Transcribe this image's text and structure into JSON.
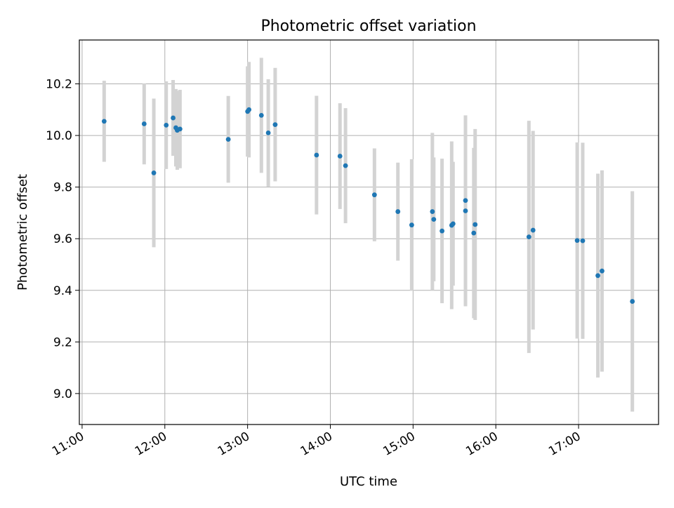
{
  "chart_data": {
    "type": "scatter",
    "title": "Photometric offset variation",
    "xlabel": "UTC time",
    "ylabel": "Photometric offset",
    "x_tick_labels": [
      "11:00",
      "12:00",
      "13:00",
      "14:00",
      "15:00",
      "16:00",
      "17:00"
    ],
    "x_ticks": [
      "11:00",
      "12:00",
      "13:00",
      "14:00",
      "15:00",
      "16:00",
      "17:00"
    ],
    "y_ticks": [
      9.0,
      9.2,
      9.4,
      9.6,
      9.8,
      10.0,
      10.2
    ],
    "y_tick_labels": [
      "9.0",
      "9.2",
      "9.4",
      "9.6",
      "9.8",
      "10.0",
      "10.2"
    ],
    "xlim": [
      "10:58",
      "17:58"
    ],
    "ylim": [
      8.88,
      10.37
    ],
    "grid": true,
    "marker_color": "#1f77b4",
    "errorbar_color": "#d3d3d3",
    "points": [
      {
        "x": "11:16",
        "y": 10.055,
        "yerr": 0.157
      },
      {
        "x": "11:45",
        "y": 10.045,
        "yerr": 0.157
      },
      {
        "x": "11:52",
        "y": 9.855,
        "yerr": 0.288
      },
      {
        "x": "12:01",
        "y": 10.04,
        "yerr": 0.17
      },
      {
        "x": "12:06",
        "y": 10.068,
        "yerr": 0.147
      },
      {
        "x": "12:08",
        "y": 10.03,
        "yerr": 0.15
      },
      {
        "x": "12:09",
        "y": 10.02,
        "yerr": 0.153
      },
      {
        "x": "12:11",
        "y": 10.025,
        "yerr": 0.152
      },
      {
        "x": "12:46",
        "y": 9.985,
        "yerr": 0.168
      },
      {
        "x": "13:00",
        "y": 10.093,
        "yerr": 0.175
      },
      {
        "x": "13:01",
        "y": 10.1,
        "yerr": 0.185
      },
      {
        "x": "13:10",
        "y": 10.078,
        "yerr": 0.223
      },
      {
        "x": "13:15",
        "y": 10.01,
        "yerr": 0.208
      },
      {
        "x": "13:20",
        "y": 10.042,
        "yerr": 0.22
      },
      {
        "x": "13:50",
        "y": 9.924,
        "yerr": 0.23
      },
      {
        "x": "14:07",
        "y": 9.92,
        "yerr": 0.205
      },
      {
        "x": "14:11",
        "y": 9.883,
        "yerr": 0.223
      },
      {
        "x": "14:32",
        "y": 9.77,
        "yerr": 0.18
      },
      {
        "x": "14:49",
        "y": 9.705,
        "yerr": 0.19
      },
      {
        "x": "14:59",
        "y": 9.653,
        "yerr": 0.255
      },
      {
        "x": "15:14",
        "y": 9.705,
        "yerr": 0.305
      },
      {
        "x": "15:15",
        "y": 9.675,
        "yerr": 0.24
      },
      {
        "x": "15:21",
        "y": 9.63,
        "yerr": 0.28
      },
      {
        "x": "15:28",
        "y": 9.652,
        "yerr": 0.325
      },
      {
        "x": "15:29",
        "y": 9.658,
        "yerr": 0.24
      },
      {
        "x": "15:38",
        "y": 9.748,
        "yerr": 0.325
      },
      {
        "x": "15:38",
        "y": 9.708,
        "yerr": 0.37
      },
      {
        "x": "15:44",
        "y": 9.622,
        "yerr": 0.33
      },
      {
        "x": "15:45",
        "y": 9.655,
        "yerr": 0.37
      },
      {
        "x": "16:24",
        "y": 9.607,
        "yerr": 0.45
      },
      {
        "x": "16:27",
        "y": 9.633,
        "yerr": 0.385
      },
      {
        "x": "16:59",
        "y": 9.593,
        "yerr": 0.38
      },
      {
        "x": "17:03",
        "y": 9.592,
        "yerr": 0.38
      },
      {
        "x": "17:14",
        "y": 9.457,
        "yerr": 0.395
      },
      {
        "x": "17:17",
        "y": 9.475,
        "yerr": 0.39
      },
      {
        "x": "17:39",
        "y": 9.357,
        "yerr": 0.427
      }
    ]
  }
}
